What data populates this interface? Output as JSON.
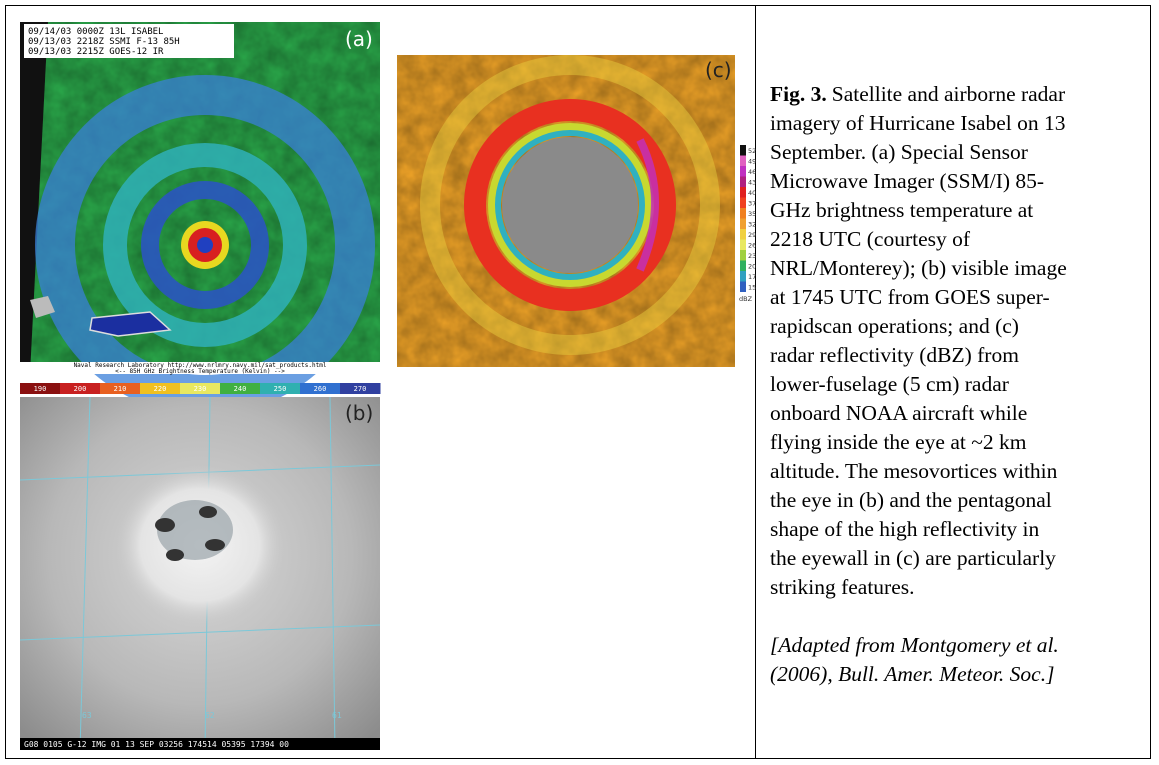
{
  "panels": {
    "a": {
      "label": "(a)",
      "header": [
        "09/14/03 0000Z 13L ISABEL",
        "09/13/03 2218Z SSMI F-13 85H",
        "09/13/03 2215Z GOES-12 IR"
      ],
      "footer": [
        "Naval Research Laboratory  http://www.nrlmry.navy.mil/sat_products.html",
        "<--   85H GHz Brightness Temperature (Kelvin)   -->"
      ],
      "colorbar": [
        "190",
        "200",
        "210",
        "220",
        "230",
        "240",
        "250",
        "260",
        "270"
      ]
    },
    "b": {
      "label": "(b)",
      "grid_labels": [
        "63",
        "62",
        "61"
      ],
      "footer": "G08 0105 G-12 IMG 01 13 SEP 03256 174514 05395 17394 00"
    },
    "c": {
      "label": "(c)",
      "legend": [
        "52",
        "49",
        "46",
        "43",
        "40",
        "37",
        "35",
        "32",
        "29",
        "26",
        "23",
        "20",
        "17",
        "15"
      ],
      "legend_unit": "dBZ"
    }
  },
  "caption": {
    "label": "Fig. 3.",
    "lines": [
      "Satellite and airborne radar",
      "imagery of Hurricane Isabel on 13",
      "September. (a) Special Sensor",
      "Microwave Imager (SSM/I) 85-",
      "GHz brightness temperature at",
      "2218 UTC (courtesy of",
      "NRL/Monterey); (b) visible image",
      "at 1745 UTC from GOES super-",
      "rapidscan operations; and (c)",
      "radar reflectivity (dBZ) from",
      "lower-fuselage (5 cm) radar",
      "onboard NOAA aircraft while",
      "flying inside the eye at ~2 km",
      "altitude. The mesovortices within",
      "the eye in (b) and the pentagonal",
      "shape of the high reflectivity in",
      "the eyewall in (c) are particularly",
      "striking features."
    ],
    "citation": [
      "[Adapted from Montgomery et al.",
      "(2006), Bull. Amer. Meteor. Soc.]"
    ]
  }
}
